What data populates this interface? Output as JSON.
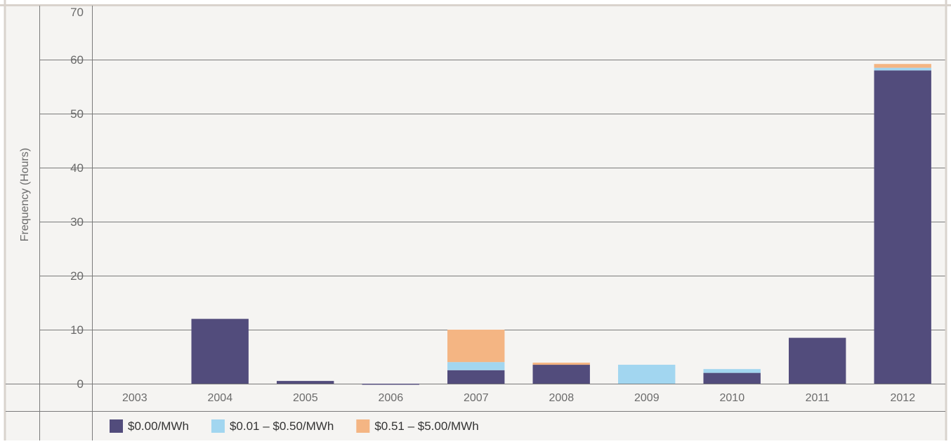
{
  "colors": {
    "s0": "#524c7c",
    "s1": "#a2d6f0",
    "s2": "#f4b583",
    "background": "#f5f4f2",
    "grid": "#7a7a7a",
    "frame": "#d9d3cd",
    "text": "#6b6b6b"
  },
  "chart_data": {
    "type": "bar",
    "stacked": true,
    "title": "",
    "xlabel": "",
    "ylabel": "Frequency (Hours)",
    "ylim": [
      0,
      70
    ],
    "yticks": [
      0,
      10,
      20,
      30,
      40,
      50,
      60,
      70
    ],
    "grid": true,
    "legend_position": "bottom",
    "categories": [
      "2003",
      "2004",
      "2005",
      "2006",
      "2007",
      "2008",
      "2009",
      "2010",
      "2011",
      "2012"
    ],
    "series": [
      {
        "name": "$0.00/MWh",
        "color": "#524c7c",
        "values": [
          0,
          12,
          0.5,
          -0.2,
          2.5,
          3.5,
          0,
          2,
          8.5,
          58
        ]
      },
      {
        "name": "$0.01 – $0.50/MWh",
        "color": "#a2d6f0",
        "values": [
          0,
          0,
          0,
          0,
          1.5,
          0,
          3.5,
          0.7,
          0,
          0.5
        ]
      },
      {
        "name": "$0.51 – $5.00/MWh",
        "color": "#f4b583",
        "values": [
          0,
          0,
          0,
          0,
          6,
          0.4,
          0,
          0,
          0,
          0.7
        ]
      }
    ]
  }
}
